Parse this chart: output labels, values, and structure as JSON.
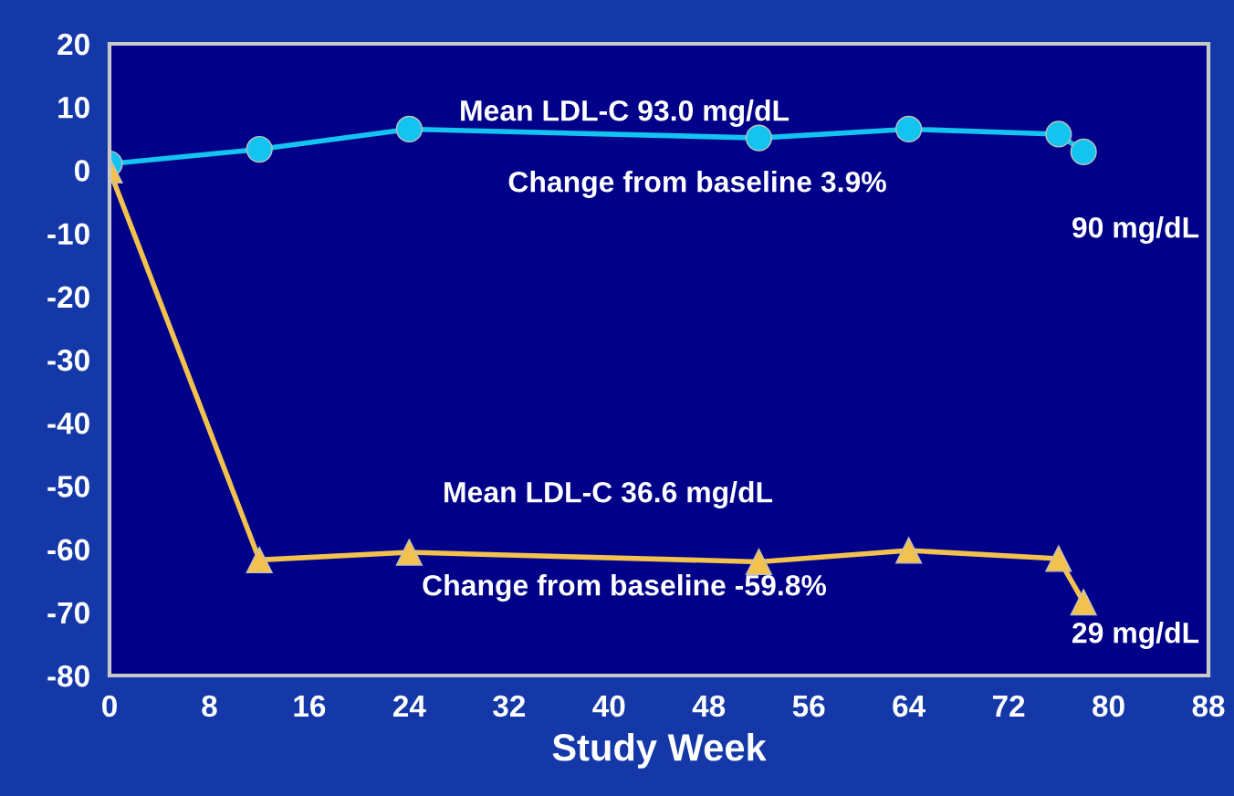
{
  "chart_data": {
    "type": "line",
    "xlabel": "Study Week",
    "x": [
      0,
      12,
      24,
      52,
      64,
      76,
      78
    ],
    "series": [
      {
        "color": "#14c4f0",
        "marker": "circle",
        "values": [
          1,
          3.3,
          6.5,
          5.1,
          6.5,
          5.7,
          2.9
        ]
      },
      {
        "color": "#f2c14e",
        "marker": "triangle",
        "values": [
          0,
          -61.7,
          -60.5,
          -62,
          -60.2,
          -61.5,
          -68.4
        ]
      }
    ],
    "xlim": [
      0,
      88
    ],
    "xticks": [
      0,
      8,
      16,
      24,
      32,
      40,
      48,
      56,
      64,
      72,
      80,
      88
    ],
    "ylim": [
      -80,
      20
    ],
    "yticks": [
      -80,
      -70,
      -60,
      -50,
      -40,
      -30,
      -20,
      -10,
      0,
      10,
      20
    ],
    "grid": false,
    "legend": false,
    "line_style": "solid",
    "annotations": [
      "Mean LDL-C 93.0 mg/dL",
      "Change from baseline 3.9%",
      "90 mg/dL",
      "Mean LDL-C 36.6 mg/dL",
      "Change from baseline -59.8%",
      "29 mg/dL"
    ]
  }
}
